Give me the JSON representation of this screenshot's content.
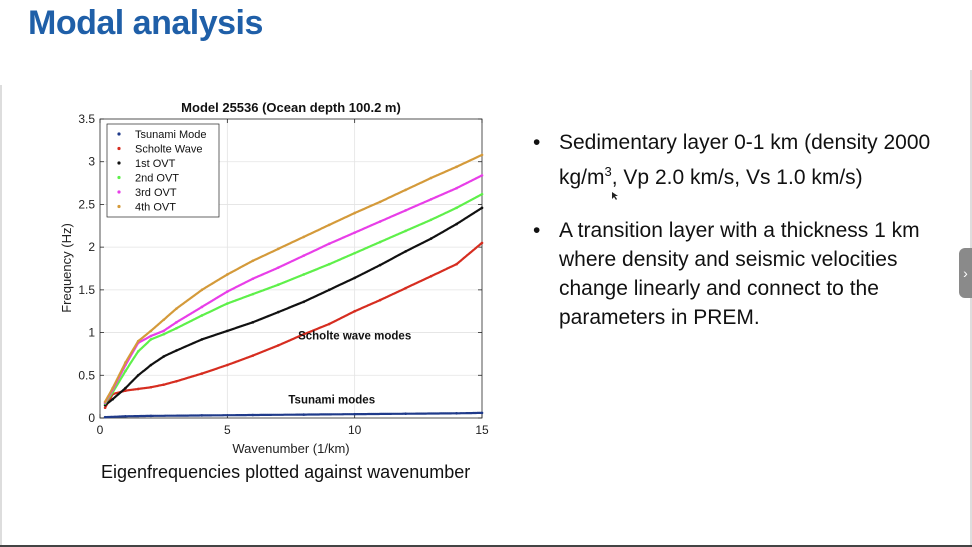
{
  "slide": {
    "title": "Modal analysis",
    "caption": "Eigenfrequencies plotted against wavenumber",
    "bullets": [
      {
        "marker": "•",
        "text_before": "Sedimentary layer 0-1 km (density 2000 kg/m",
        "superscript": "3",
        "text_after": ", Vp 2.0 km/s, Vs 1.0 km/s)"
      },
      {
        "marker": "•",
        "text": " A transition layer with a thickness 1 km where density and seismic velocities change linearly and connect to the parameters in PREM."
      }
    ],
    "next_icon": "chevron-right-icon",
    "accent_color": "#1f5fa8"
  },
  "chart_data": {
    "type": "scatter",
    "title": "Model 25536 (Ocean depth 100.2 m)",
    "xlabel": "Wavenumber (1/km)",
    "ylabel": "Frequency (Hz)",
    "xlim": [
      0,
      15
    ],
    "ylim": [
      0,
      3.5
    ],
    "xticks": [
      0,
      5,
      10,
      15
    ],
    "yticks": [
      0,
      0.5,
      1,
      1.5,
      2,
      2.5,
      3,
      3.5
    ],
    "grid": true,
    "legend_position": "top-left",
    "annotations": [
      {
        "text": "Scholte wave modes",
        "x": 10.0,
        "y": 0.92
      },
      {
        "text": "Tsunami modes",
        "x": 9.1,
        "y": 0.17
      }
    ],
    "series": [
      {
        "name": "Tsunami Mode",
        "color": "#1f3a8a",
        "x": [
          0.2,
          1,
          2,
          4,
          6,
          8,
          10,
          12,
          14,
          15
        ],
        "y": [
          0.01,
          0.02,
          0.025,
          0.03,
          0.035,
          0.04,
          0.045,
          0.05,
          0.055,
          0.06
        ]
      },
      {
        "name": "Scholte Wave",
        "color": "#d62d20",
        "x": [
          0.2,
          0.5,
          1,
          1.5,
          2,
          2.5,
          3,
          4,
          5,
          6,
          7,
          8,
          9,
          10,
          11,
          12,
          13,
          14,
          15
        ],
        "y": [
          0.12,
          0.28,
          0.32,
          0.34,
          0.36,
          0.39,
          0.43,
          0.52,
          0.62,
          0.73,
          0.85,
          0.98,
          1.1,
          1.25,
          1.38,
          1.52,
          1.66,
          1.8,
          2.05
        ]
      },
      {
        "name": "1st OVT",
        "color": "#111111",
        "x": [
          0.2,
          0.5,
          1,
          1.5,
          2,
          2.5,
          3,
          4,
          5,
          6,
          7,
          8,
          9,
          10,
          11,
          12,
          13,
          14,
          15
        ],
        "y": [
          0.15,
          0.22,
          0.35,
          0.5,
          0.62,
          0.72,
          0.79,
          0.92,
          1.02,
          1.12,
          1.24,
          1.36,
          1.5,
          1.64,
          1.79,
          1.95,
          2.1,
          2.27,
          2.46
        ]
      },
      {
        "name": "2nd OVT",
        "color": "#5ef04a",
        "x": [
          0.2,
          0.5,
          1,
          1.5,
          2,
          2.5,
          3,
          4,
          5,
          6,
          7,
          8,
          9,
          10,
          11,
          12,
          13,
          14,
          15
        ],
        "y": [
          0.17,
          0.3,
          0.55,
          0.78,
          0.92,
          0.98,
          1.05,
          1.2,
          1.34,
          1.45,
          1.56,
          1.68,
          1.8,
          1.93,
          2.06,
          2.19,
          2.32,
          2.46,
          2.62
        ]
      },
      {
        "name": "3rd OVT",
        "color": "#e83ee8",
        "x": [
          0.2,
          0.5,
          1,
          1.5,
          2,
          2.5,
          3,
          4,
          5,
          6,
          7,
          8,
          9,
          10,
          11,
          12,
          13,
          14,
          15
        ],
        "y": [
          0.18,
          0.33,
          0.62,
          0.88,
          0.96,
          1.02,
          1.12,
          1.3,
          1.48,
          1.63,
          1.76,
          1.9,
          2.04,
          2.17,
          2.3,
          2.43,
          2.56,
          2.69,
          2.84
        ]
      },
      {
        "name": "4th OVT",
        "color": "#d49a3a",
        "x": [
          0.2,
          0.5,
          1,
          1.5,
          2,
          2.5,
          3,
          4,
          5,
          6,
          7,
          8,
          9,
          10,
          11,
          12,
          13,
          14,
          15
        ],
        "y": [
          0.19,
          0.35,
          0.65,
          0.9,
          1.02,
          1.15,
          1.28,
          1.5,
          1.68,
          1.84,
          1.98,
          2.12,
          2.26,
          2.4,
          2.53,
          2.67,
          2.81,
          2.94,
          3.08
        ]
      }
    ]
  }
}
